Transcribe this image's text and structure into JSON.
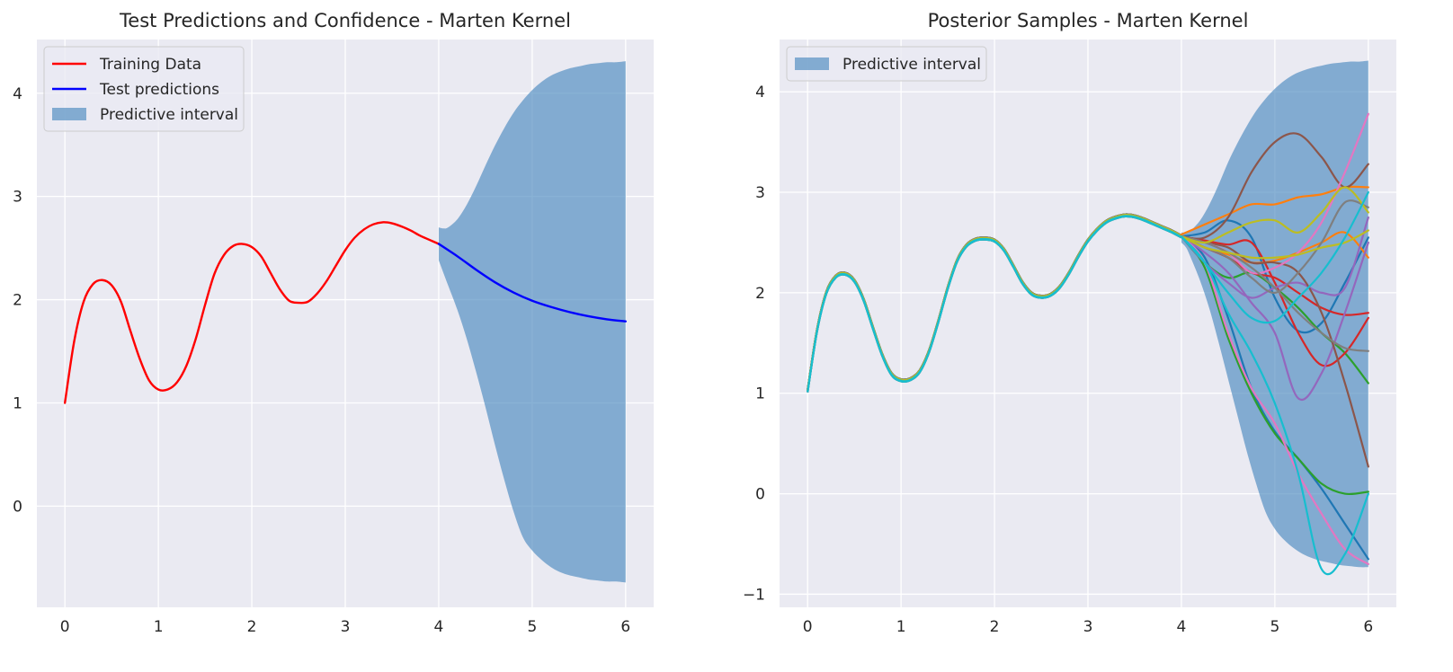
{
  "chart_data": [
    {
      "type": "line",
      "title": "Test Predictions and Confidence - Marten Kernel",
      "xlabel": "",
      "ylabel": "",
      "xlim": [
        -0.3,
        6.3
      ],
      "ylim": [
        -0.98,
        4.52
      ],
      "xticks": [
        "0",
        "1",
        "2",
        "3",
        "4",
        "5",
        "6"
      ],
      "yticks": [
        "0",
        "1",
        "2",
        "3",
        "4"
      ],
      "grid": true,
      "legend_placement": "upper-left",
      "series": [
        {
          "name": "Training Data",
          "color": "#ff0000",
          "x": [
            0,
            0.1,
            0.2,
            0.3,
            0.4,
            0.5,
            0.6,
            0.7,
            0.8,
            0.9,
            1.0,
            1.1,
            1.2,
            1.3,
            1.4,
            1.5,
            1.6,
            1.7,
            1.8,
            1.9,
            2.0,
            2.1,
            2.2,
            2.3,
            2.4,
            2.5,
            2.6,
            2.7,
            2.8,
            2.9,
            3.0,
            3.1,
            3.2,
            3.3,
            3.4,
            3.5,
            3.6,
            3.7,
            3.8,
            3.9,
            4.0
          ],
          "y": [
            1.0,
            1.6,
            1.98,
            2.15,
            2.19,
            2.14,
            1.98,
            1.7,
            1.43,
            1.22,
            1.13,
            1.13,
            1.2,
            1.36,
            1.62,
            1.95,
            2.25,
            2.43,
            2.52,
            2.54,
            2.51,
            2.42,
            2.26,
            2.1,
            1.99,
            1.97,
            1.98,
            2.06,
            2.18,
            2.33,
            2.48,
            2.6,
            2.68,
            2.73,
            2.75,
            2.74,
            2.71,
            2.67,
            2.62,
            2.58,
            2.54
          ]
        },
        {
          "name": "Test predictions",
          "color": "#0000ff",
          "x": [
            4.0,
            4.2,
            4.4,
            4.6,
            4.8,
            5.0,
            5.2,
            5.4,
            5.6,
            5.8,
            6.0
          ],
          "y": [
            2.54,
            2.42,
            2.29,
            2.17,
            2.07,
            1.99,
            1.93,
            1.88,
            1.84,
            1.81,
            1.79
          ]
        }
      ],
      "interval": {
        "name": "Predictive interval",
        "color": "#4a88be",
        "x": [
          4.0,
          4.05,
          4.1,
          4.2,
          4.3,
          4.4,
          4.5,
          4.6,
          4.7,
          4.8,
          4.9,
          5.0,
          5.1,
          5.2,
          5.3,
          5.4,
          5.5,
          5.6,
          5.7,
          5.8,
          5.9,
          6.0
        ],
        "upper": [
          2.7,
          2.69,
          2.7,
          2.78,
          2.92,
          3.1,
          3.3,
          3.49,
          3.66,
          3.81,
          3.93,
          4.03,
          4.11,
          4.17,
          4.21,
          4.24,
          4.26,
          4.28,
          4.29,
          4.3,
          4.3,
          4.31
        ],
        "lower": [
          2.38,
          2.26,
          2.14,
          1.9,
          1.62,
          1.3,
          0.96,
          0.6,
          0.26,
          -0.05,
          -0.3,
          -0.43,
          -0.52,
          -0.59,
          -0.64,
          -0.67,
          -0.69,
          -0.71,
          -0.72,
          -0.73,
          -0.73,
          -0.74
        ]
      }
    },
    {
      "type": "line",
      "title": "Posterior Samples - Marten Kernel",
      "xlabel": "",
      "ylabel": "",
      "xlim": [
        -0.3,
        6.3
      ],
      "ylim": [
        -1.13,
        4.52
      ],
      "xticks": [
        "0",
        "1",
        "2",
        "3",
        "4",
        "5",
        "6"
      ],
      "yticks": [
        "−1",
        "0",
        "1",
        "2",
        "3",
        "4"
      ],
      "grid": true,
      "legend_placement": "upper-left",
      "interval": {
        "name": "Predictive interval",
        "color": "#4a88be",
        "x": [
          4.0,
          4.05,
          4.1,
          4.2,
          4.3,
          4.4,
          4.5,
          4.6,
          4.7,
          4.8,
          4.9,
          5.0,
          5.1,
          5.2,
          5.3,
          5.4,
          5.5,
          5.6,
          5.7,
          5.8,
          5.9,
          6.0
        ],
        "upper": [
          2.6,
          2.6,
          2.62,
          2.72,
          2.88,
          3.08,
          3.3,
          3.49,
          3.66,
          3.81,
          3.93,
          4.03,
          4.11,
          4.17,
          4.21,
          4.24,
          4.26,
          4.28,
          4.29,
          4.3,
          4.3,
          4.31
        ],
        "lower": [
          2.5,
          2.45,
          2.35,
          2.12,
          1.84,
          1.5,
          1.14,
          0.78,
          0.42,
          0.1,
          -0.18,
          -0.35,
          -0.46,
          -0.54,
          -0.6,
          -0.64,
          -0.67,
          -0.69,
          -0.71,
          -0.72,
          -0.73,
          -0.73
        ]
      },
      "shared_training_curve": {
        "x": [
          0,
          0.1,
          0.2,
          0.3,
          0.4,
          0.5,
          0.6,
          0.7,
          0.8,
          0.9,
          1.0,
          1.1,
          1.2,
          1.3,
          1.4,
          1.5,
          1.6,
          1.7,
          1.8,
          1.9,
          2.0,
          2.1,
          2.2,
          2.3,
          2.4,
          2.5,
          2.6,
          2.7,
          2.8,
          2.9,
          3.0,
          3.1,
          3.2,
          3.3,
          3.4,
          3.5,
          3.6,
          3.7,
          3.8,
          3.9,
          4.0
        ],
        "y": [
          1.02,
          1.62,
          2.0,
          2.16,
          2.19,
          2.12,
          1.93,
          1.65,
          1.38,
          1.19,
          1.13,
          1.14,
          1.22,
          1.42,
          1.72,
          2.05,
          2.32,
          2.47,
          2.53,
          2.54,
          2.52,
          2.43,
          2.27,
          2.1,
          1.99,
          1.96,
          1.98,
          2.06,
          2.2,
          2.37,
          2.52,
          2.63,
          2.71,
          2.75,
          2.77,
          2.76,
          2.73,
          2.69,
          2.65,
          2.61,
          2.56
        ]
      },
      "samples_x": [
        4.0,
        4.25,
        4.5,
        4.75,
        5.0,
        5.25,
        5.5,
        5.75,
        6.0
      ],
      "series": [
        {
          "color": "#1f77b4",
          "y": [
            2.56,
            2.6,
            2.72,
            2.55,
            1.95,
            1.62,
            1.7,
            2.1,
            2.55
          ]
        },
        {
          "color": "#1f77b4",
          "y": [
            2.56,
            2.35,
            1.75,
            1.05,
            0.62,
            0.35,
            0.05,
            -0.3,
            -0.65
          ]
        },
        {
          "color": "#ff7f0e",
          "y": [
            2.58,
            2.68,
            2.78,
            2.88,
            2.88,
            2.95,
            2.98,
            3.05,
            3.05
          ]
        },
        {
          "color": "#ff7f0e",
          "y": [
            2.56,
            2.45,
            2.38,
            2.3,
            2.32,
            2.4,
            2.5,
            2.6,
            2.35
          ]
        },
        {
          "color": "#2ca02c",
          "y": [
            2.56,
            2.25,
            1.55,
            1.0,
            0.6,
            0.35,
            0.1,
            0.0,
            0.02
          ]
        },
        {
          "color": "#2ca02c",
          "y": [
            2.56,
            2.3,
            2.15,
            2.2,
            2.05,
            1.85,
            1.6,
            1.4,
            1.1
          ]
        },
        {
          "color": "#d62728",
          "y": [
            2.56,
            2.52,
            2.48,
            2.5,
            2.1,
            1.6,
            1.28,
            1.4,
            1.75
          ]
        },
        {
          "color": "#d62728",
          "y": [
            2.56,
            2.45,
            2.35,
            2.2,
            2.15,
            2.0,
            1.85,
            1.78,
            1.8
          ]
        },
        {
          "color": "#9467bd",
          "y": [
            2.56,
            2.4,
            2.2,
            1.9,
            1.6,
            0.95,
            1.2,
            1.8,
            2.5
          ]
        },
        {
          "color": "#9467bd",
          "y": [
            2.56,
            2.3,
            2.1,
            1.95,
            2.05,
            2.1,
            2.0,
            2.05,
            2.75
          ]
        },
        {
          "color": "#8c564b",
          "y": [
            2.56,
            2.55,
            2.75,
            3.2,
            3.5,
            3.58,
            3.35,
            3.05,
            3.28
          ]
        },
        {
          "color": "#8c564b",
          "y": [
            2.56,
            2.5,
            2.45,
            2.3,
            2.3,
            2.2,
            1.8,
            1.1,
            0.27
          ]
        },
        {
          "color": "#e377c2",
          "y": [
            2.56,
            2.3,
            1.6,
            1.05,
            0.7,
            0.2,
            -0.2,
            -0.55,
            -0.7
          ]
        },
        {
          "color": "#e377c2",
          "y": [
            2.56,
            2.5,
            2.4,
            2.2,
            2.25,
            2.4,
            2.7,
            3.2,
            3.78
          ]
        },
        {
          "color": "#7f7f7f",
          "y": [
            2.56,
            2.5,
            2.4,
            2.25,
            2.05,
            1.8,
            1.6,
            1.45,
            1.42
          ]
        },
        {
          "color": "#7f7f7f",
          "y": [
            2.56,
            2.45,
            2.35,
            2.15,
            2.0,
            2.2,
            2.5,
            2.9,
            2.85
          ]
        },
        {
          "color": "#bcbd22",
          "y": [
            2.56,
            2.5,
            2.6,
            2.7,
            2.72,
            2.6,
            2.8,
            3.05,
            2.8
          ]
        },
        {
          "color": "#bcbd22",
          "y": [
            2.56,
            2.45,
            2.4,
            2.35,
            2.35,
            2.38,
            2.45,
            2.5,
            2.62
          ]
        },
        {
          "color": "#17becf",
          "y": [
            2.56,
            2.3,
            1.8,
            1.4,
            0.9,
            0.2,
            -0.75,
            -0.6,
            0.0
          ]
        },
        {
          "color": "#17becf",
          "y": [
            2.56,
            2.3,
            2.0,
            1.75,
            1.72,
            1.95,
            2.2,
            2.55,
            3.0
          ]
        }
      ]
    }
  ],
  "legends": [
    [
      {
        "label": "Training Data",
        "kind": "line",
        "color": "#ff0000"
      },
      {
        "label": "Test predictions",
        "kind": "line",
        "color": "#0000ff"
      },
      {
        "label": "Predictive interval",
        "kind": "patch",
        "color": "#4a88be"
      }
    ],
    [
      {
        "label": "Predictive interval",
        "kind": "patch",
        "color": "#4a88be"
      }
    ]
  ],
  "style": {
    "axes_background": "#eaeaf2",
    "grid_color": "#ffffff",
    "interval_opacity": 0.65
  }
}
